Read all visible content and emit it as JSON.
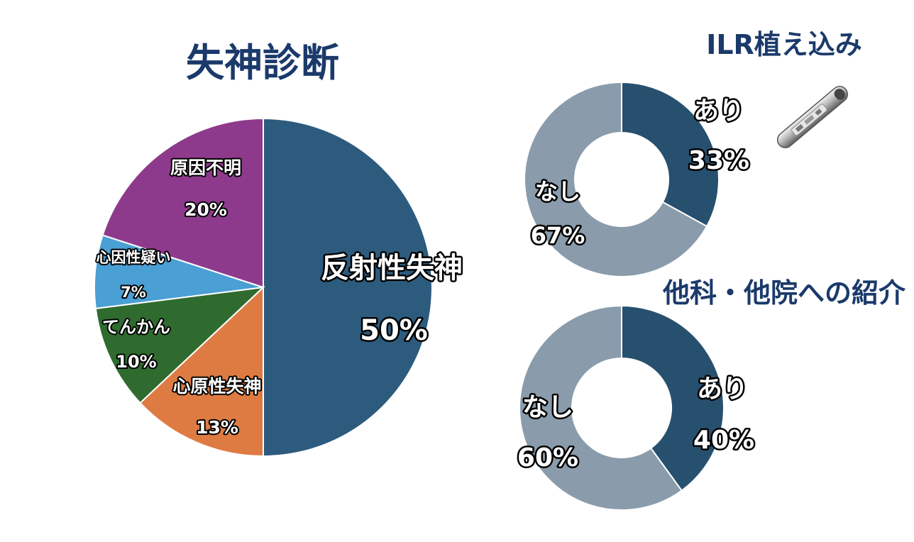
{
  "chart_data": [
    {
      "type": "pie",
      "title": "失神診断",
      "slices": [
        {
          "label": "反射性失神",
          "value": 50,
          "value_label": "50%",
          "color": "#2d5b7e"
        },
        {
          "label": "心原性失神",
          "value": 13,
          "value_label": "13%",
          "color": "#de7b43"
        },
        {
          "label": "てんかん",
          "value": 10,
          "value_label": "10%",
          "color": "#2f6b2f"
        },
        {
          "label": "心因性疑い",
          "value": 7,
          "value_label": "7%",
          "color": "#4a9fd4"
        },
        {
          "label": "原因不明",
          "value": 20,
          "value_label": "20%",
          "color": "#8e3a8c"
        }
      ]
    },
    {
      "type": "donut",
      "title": "ILR植え込み",
      "slices": [
        {
          "label": "あり",
          "value": 33,
          "value_label": "33%",
          "color": "#27506f"
        },
        {
          "label": "なし",
          "value": 67,
          "value_label": "67%",
          "color": "#8a9cab"
        }
      ]
    },
    {
      "type": "donut",
      "title": "他科・他院への紹介",
      "slices": [
        {
          "label": "あり",
          "value": 40,
          "value_label": "40%",
          "color": "#27506f"
        },
        {
          "label": "なし",
          "value": 60,
          "value_label": "60%",
          "color": "#8a9cab"
        }
      ]
    }
  ]
}
